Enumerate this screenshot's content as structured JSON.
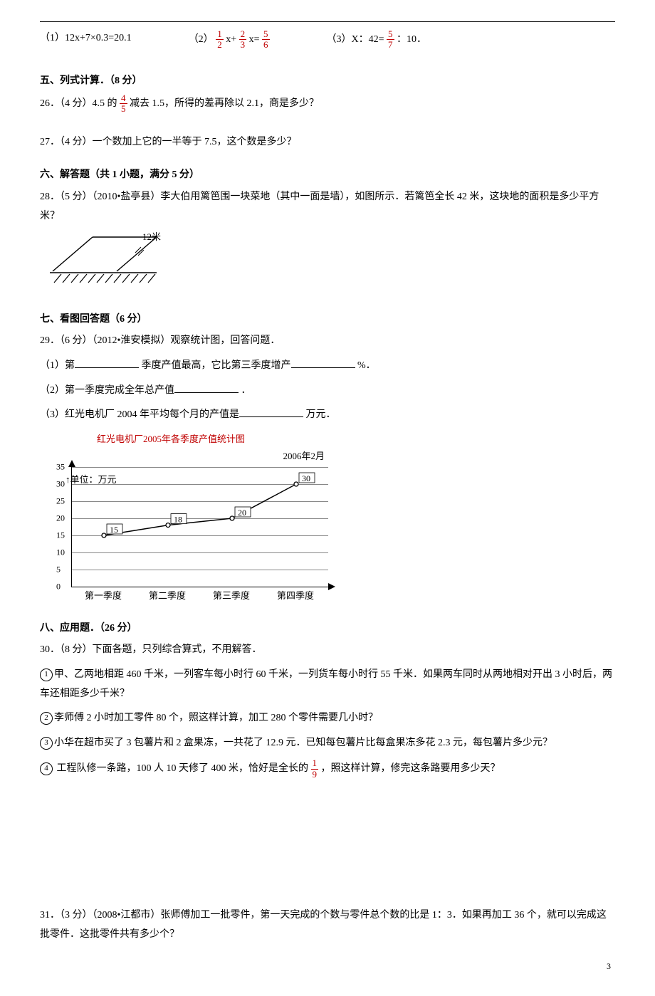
{
  "eq_row": {
    "a": "（1）12x+7×0.3=20.1",
    "b_pre": "（2）",
    "b_f1_n": "1",
    "b_f1_d": "2",
    "b_mid1": "x+",
    "b_f2_n": "2",
    "b_f2_d": "3",
    "b_mid2": "x=",
    "b_f3_n": "5",
    "b_f3_d": "6",
    "c_pre": "（3）X：42=",
    "c_f_n": "5",
    "c_f_d": "7",
    "c_post": "：10．"
  },
  "s5": {
    "head": "五、列式计算．（8 分）",
    "q26_pre": "26．（4 分）4.5 的",
    "q26_f_n": "4",
    "q26_f_d": "5",
    "q26_post": "减去 1.5，所得的差再除以 2.1，商是多少？",
    "q27": "27．（4 分）一个数加上它的一半等于 7.5，这个数是多少？"
  },
  "s6": {
    "head": "六、解答题（共 1 小题，满分 5 分）",
    "q28": "28．（5 分）（2010•盐亭县）李大伯用篱笆围一块菜地（其中一面是墙），如图所示．若篱笆全长 42 米，这块地的面积是多少平方米？",
    "fig_label": "12米"
  },
  "s7": {
    "head": "七、看图回答题（6 分）",
    "q29": "29．（6 分）（2012•淮安模拟）观察统计图，回答问题．",
    "line1a": "（1）第",
    "line1b": "季度产值最高，它比第三季度增产",
    "line1c": "%．",
    "line2a": "（2）第一季度完成全年总产值",
    "line2b": "．",
    "line3a": "（3）红光电机厂 2004 年平均每个月的产值是",
    "line3b": "万元．",
    "chart_title": "红光电机厂2005年各季度产值统计图",
    "chart_sub": "2006年2月",
    "y_unit": "单位：万元",
    "chart": {
      "yticks": [
        "0",
        "5",
        "10",
        "15",
        "20",
        "25",
        "30",
        "35"
      ],
      "ymax": 35,
      "x": [
        "第一季度",
        "第二季度",
        "第三季度",
        "第四季度"
      ],
      "values": [
        15,
        18,
        20,
        30
      ],
      "line_color": "#000000",
      "grid_color": "#888888",
      "point_labels": [
        "15",
        "18",
        "20",
        "30"
      ]
    }
  },
  "s8": {
    "head": "八、应用题．（26 分）",
    "q30": "30．（8 分）下面各题，只列综合算式，不用解答．",
    "i1": "甲、乙两地相距 460 千米，一列客车每小时行 60 千米，一列货车每小时行 55 千米．如果两车同时从两地相对开出 3 小时后，两车还相距多少千米？",
    "i2": "李师傅 2 小时加工零件 80 个，照这样计算，加工 280 个零件需要几小时？",
    "i3": "小华在超市买了 3 包薯片和 2 盒果冻，一共花了 12.9 元．已知每包薯片比每盒果冻多花 2.3 元，每包薯片多少元？",
    "i4a": "工程队修一条路，100 人 10 天修了 400 米，恰好是全长的",
    "i4_f_n": "1",
    "i4_f_d": "9",
    "i4b": "，照这样计算，修完这条路要用多少天？",
    "q31": "31．（3 分）（2008•江都市）张师傅加工一批零件，第一天完成的个数与零件总个数的比是 1：3．如果再加工 36 个，就可以完成这批零件．这批零件共有多少个？"
  },
  "circles": {
    "c1": "1",
    "c2": "2",
    "c3": "3",
    "c4": "4"
  },
  "pagenum": "3"
}
